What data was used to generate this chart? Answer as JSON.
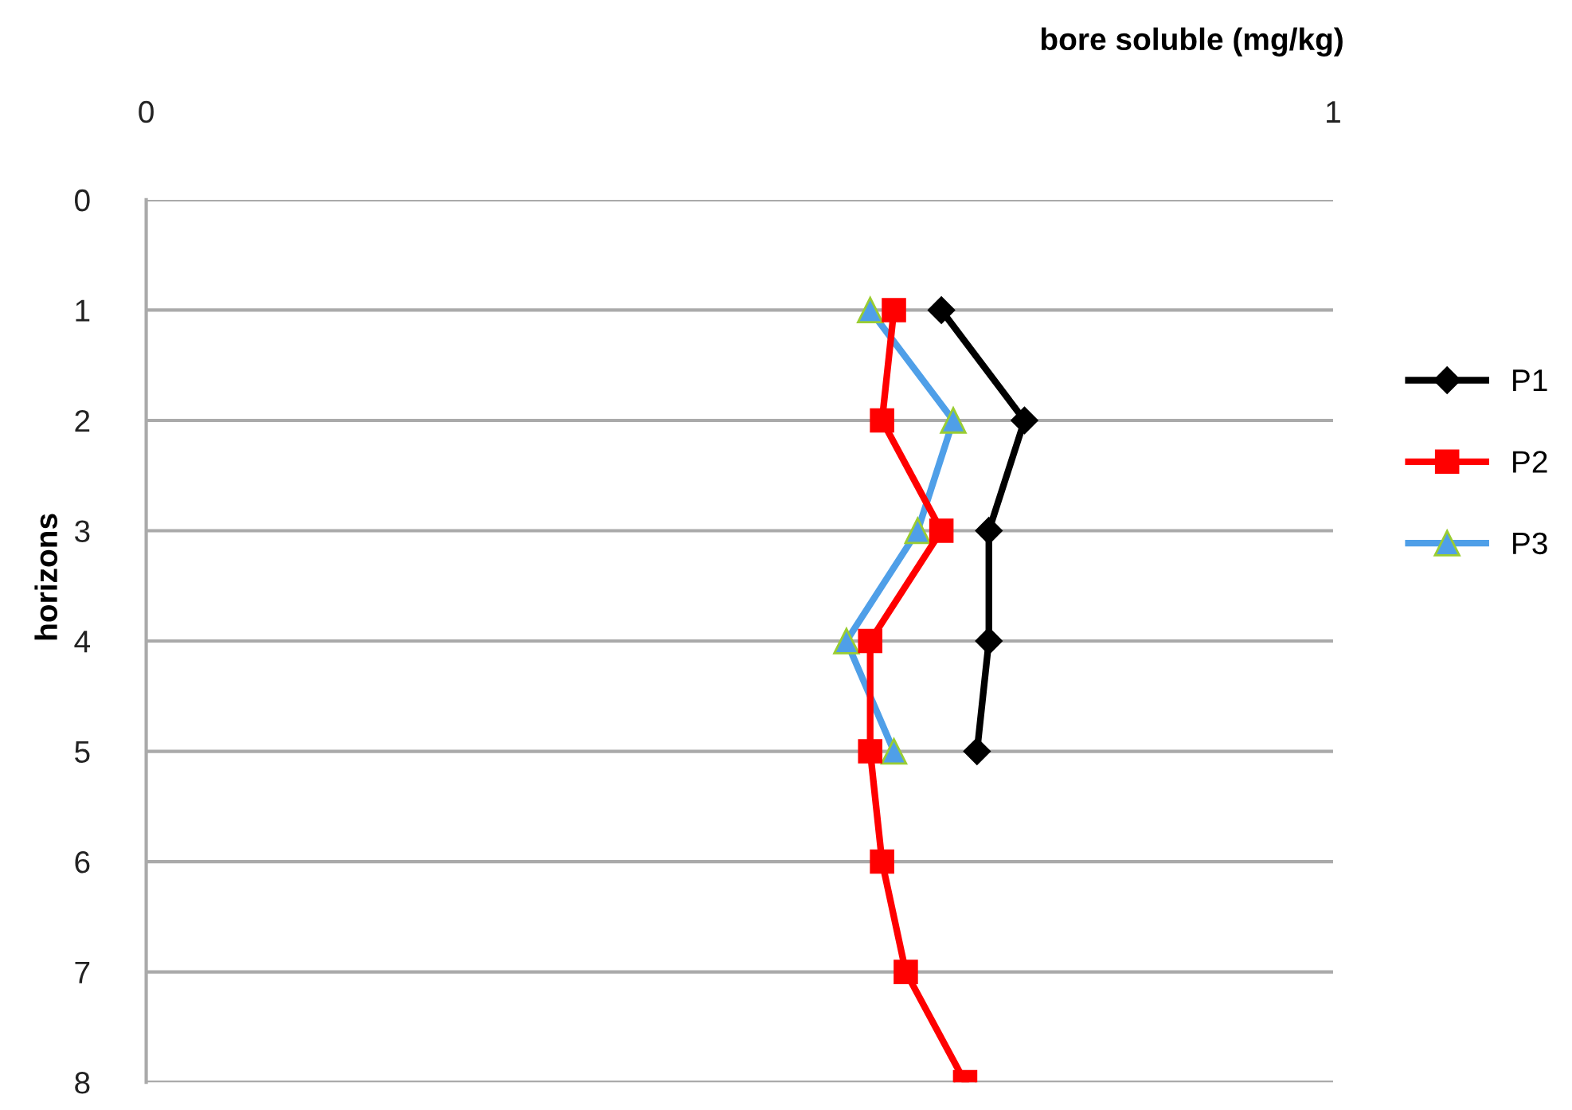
{
  "chart_data": {
    "type": "line",
    "xlabel": "bore soluble (mg/kg)",
    "ylabel": "horizons",
    "xlim": [
      0,
      1
    ],
    "xticks": [
      0,
      1
    ],
    "ylim": [
      8,
      0
    ],
    "yticks": [
      0,
      1,
      2,
      3,
      4,
      5,
      6,
      7,
      8
    ],
    "grid": "y",
    "legend": "right",
    "series": [
      {
        "name": "P1",
        "color": "#000000",
        "marker": "diamond",
        "x": [
          0.67,
          0.74,
          0.71,
          0.71,
          0.7
        ],
        "values": [
          1,
          2,
          3,
          4,
          5
        ]
      },
      {
        "name": "P2",
        "color": "#ff0000",
        "marker": "square",
        "x": [
          0.63,
          0.62,
          0.67,
          0.61,
          0.61,
          0.62,
          0.64,
          0.69
        ],
        "values": [
          1,
          2,
          3,
          4,
          5,
          6,
          7,
          8
        ]
      },
      {
        "name": "P3",
        "color": "#4f9fe8",
        "marker": "triangle",
        "x": [
          0.61,
          0.68,
          0.65,
          0.59,
          0.63
        ],
        "values": [
          1,
          2,
          3,
          4,
          5
        ]
      }
    ]
  }
}
